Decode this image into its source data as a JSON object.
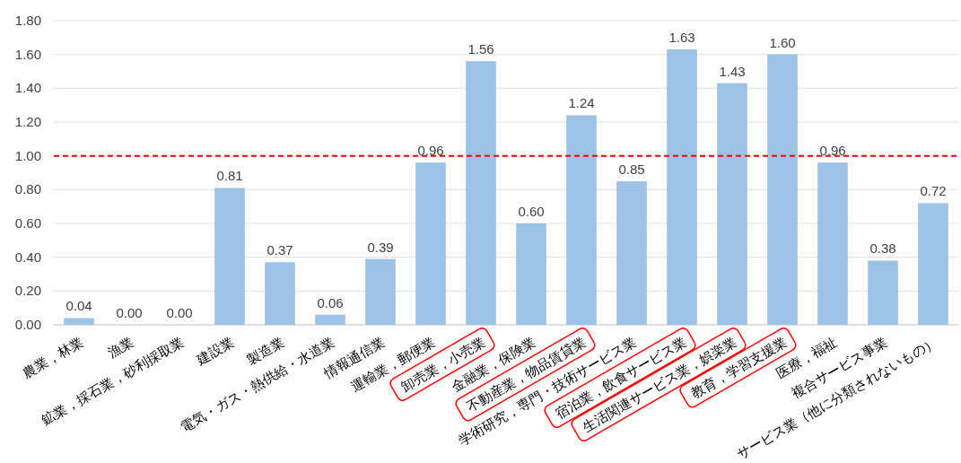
{
  "chart_data": {
    "type": "bar",
    "categories": [
      "農業，林業",
      "漁業",
      "鉱業，採石業，砂利採取業",
      "建設業",
      "製造業",
      "電気・ガス・熱供給・水道業",
      "情報通信業",
      "運輸業，郵便業",
      "卸売業，小売業",
      "金融業，保険業",
      "不動産業，物品賃貸業",
      "学術研究，専門・技術サービス業",
      "宿泊業，飲食サービス業",
      "生活関連サービス業，娯楽業",
      "教育，学習支援業",
      "医療，福祉",
      "複合サービス事業",
      "サービス業（他に分類されないもの）"
    ],
    "values": [
      0.04,
      0.0,
      0.0,
      0.81,
      0.37,
      0.06,
      0.39,
      0.96,
      1.56,
      0.6,
      1.24,
      0.85,
      1.63,
      1.43,
      1.6,
      0.96,
      0.38,
      0.72
    ],
    "value_labels": [
      "0.04",
      "0.00",
      "0.00",
      "0.81",
      "0.37",
      "0.06",
      "0.39",
      "0.96",
      "1.56",
      "0.60",
      "1.24",
      "0.85",
      "1.63",
      "1.43",
      "1.60",
      "0.96",
      "0.38",
      "0.72"
    ],
    "color": "#9dc3e6",
    "ylim": [
      0,
      1.8
    ],
    "yticks": [
      {
        "value": 0,
        "label": "0.00"
      },
      {
        "value": 0.2,
        "label": "0.20"
      },
      {
        "value": 0.4,
        "label": "0.40"
      },
      {
        "value": 0.6,
        "label": "0.60"
      },
      {
        "value": 0.8,
        "label": "0.80"
      },
      {
        "value": 1.0,
        "label": "1.00"
      },
      {
        "value": 1.2,
        "label": "1.20"
      },
      {
        "value": 1.4,
        "label": "1.40"
      },
      {
        "value": 1.6,
        "label": "1.60"
      },
      {
        "value": 1.8,
        "label": "1.80"
      }
    ],
    "grid": "y",
    "ref_lines": [
      {
        "axis": "y",
        "value": 1.0,
        "color": "#ff0000",
        "line_style": "dashed"
      }
    ]
  }
}
